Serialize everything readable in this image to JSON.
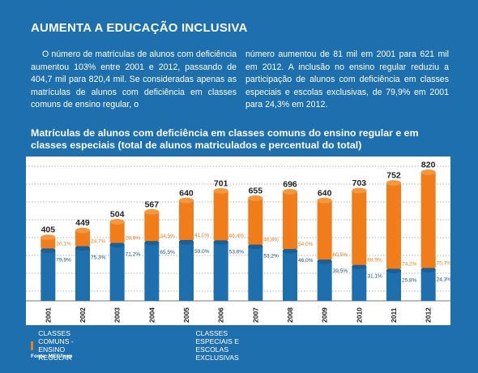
{
  "header": {
    "title": "AUMENTA A EDUCAÇÃO INCLUSIVA"
  },
  "intro": {
    "col1": "O número de matrículas de alunos com deficiência aumentou 103% entre 2001 e 2012, passando de 404,7 mil para 820,4 mil. Se consideradas apenas as matrículas de alunos com deficiência em classes comuns de ensino regular, o",
    "col2": "número aumentou de 81 mil em 2001 para 621 mil em 2012. A inclusão no ensino regular reduziu a participação de alunos com deficiência em classes especiais e escolas exclusivas, de 79,9% em 2001 para 24,3% em 2012."
  },
  "chart_data": {
    "type": "bar",
    "title": "Matrículas de alunos com deficiência em classes comuns do ensino regular e em classes especiais (total de alunos matriculados e percentual do total)",
    "categories": [
      "2001",
      "2002",
      "2003",
      "2004",
      "2005",
      "2006",
      "2007",
      "2008",
      "2009",
      "2010",
      "2011",
      "2012"
    ],
    "totals": [
      405,
      449,
      504,
      567,
      640,
      701,
      655,
      696,
      640,
      703,
      752,
      820
    ],
    "totals_labels": [
      "405",
      "449",
      "504",
      "567",
      "640",
      "701",
      "655",
      "696",
      "640",
      "703",
      "752",
      "820"
    ],
    "series": [
      {
        "name": "CLASSES COMUNS - ENSINO REGULAR",
        "color": "#f07d1a",
        "percent_labels": [
          "20,1%",
          "24,7%",
          "28,8%",
          "34,5%",
          "41,0%",
          "46,4%",
          "46,8%",
          "54,0%",
          "60,5%",
          "68,9%",
          "74,2%",
          "75,7%"
        ]
      },
      {
        "name": "CLASSES ESPECIAIS E ESCOLAS EXCLUSIVAS",
        "color": "#1d6fae",
        "percent_labels": [
          "79,9%",
          "75,3%",
          "71,2%",
          "65,5%",
          "59,0%",
          "53,6%",
          "53,2%",
          "46,0%",
          "39,5%",
          "31,1%",
          "25,8%",
          "24,3%"
        ]
      }
    ],
    "ylim": [
      0,
      900
    ],
    "grid": true
  },
  "legend": {
    "items": [
      {
        "label": "CLASSES COMUNS - ENSINO REGULAR",
        "color": "#f07d1a"
      },
      {
        "label": "CLASSES ESPECIAIS E ESCOLAS EXCLUSIVAS",
        "color": "#1d6fae"
      }
    ]
  },
  "source": "Fonte: MEC/Inep"
}
